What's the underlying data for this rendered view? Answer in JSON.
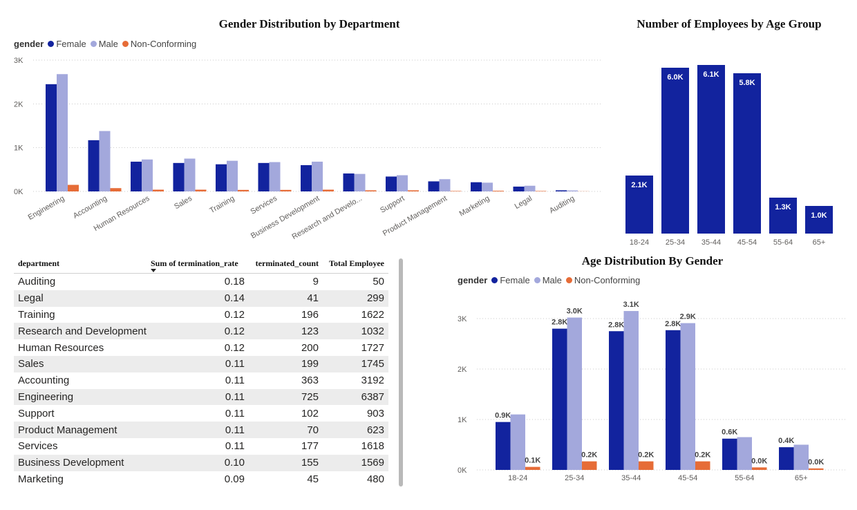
{
  "colors": {
    "female": "#12239E",
    "male": "#A3A8DC",
    "nonconforming": "#E66C37",
    "bar": "#12239E"
  },
  "chart_data": [
    {
      "id": "gender_by_department",
      "type": "bar",
      "title": "Gender Distribution by Department",
      "legend_title": "gender",
      "legend_position": "top-left",
      "grid": true,
      "categories": [
        "Engineering",
        "Accounting",
        "Human Resources",
        "Sales",
        "Training",
        "Services",
        "Business Development",
        "Research and Develo...",
        "Support",
        "Product Management",
        "Marketing",
        "Legal",
        "Auditing"
      ],
      "series": [
        {
          "name": "Female",
          "values": [
            2450,
            1170,
            680,
            650,
            620,
            650,
            600,
            410,
            340,
            230,
            210,
            110,
            25
          ]
        },
        {
          "name": "Male",
          "values": [
            2680,
            1380,
            730,
            750,
            700,
            670,
            680,
            400,
            370,
            280,
            200,
            130,
            22
          ]
        },
        {
          "name": "Non-Conforming",
          "values": [
            150,
            75,
            40,
            40,
            35,
            35,
            40,
            25,
            25,
            10,
            15,
            10,
            3
          ]
        }
      ],
      "yticks": [
        "0K",
        "1K",
        "2K",
        "3K"
      ],
      "ylim": [
        0,
        3000
      ],
      "xlabel": "",
      "ylabel": ""
    },
    {
      "id": "employees_by_age_group",
      "type": "bar",
      "title": "Number of Employees by Age Group",
      "grid": false,
      "categories": [
        "18-24",
        "25-34",
        "35-44",
        "45-54",
        "55-64",
        "65+"
      ],
      "values": [
        2100,
        6000,
        6100,
        5800,
        1300,
        1000
      ],
      "data_labels": [
        "2.1K",
        "6.0K",
        "6.1K",
        "5.8K",
        "1.3K",
        "1.0K"
      ],
      "ylim": [
        0,
        6200
      ],
      "xlabel": "",
      "ylabel": ""
    },
    {
      "id": "age_by_gender",
      "type": "bar",
      "title": "Age Distribution By Gender",
      "legend_title": "gender",
      "legend_position": "top-left",
      "grid": true,
      "categories": [
        "18-24",
        "25-34",
        "35-44",
        "45-54",
        "55-64",
        "65+"
      ],
      "series": [
        {
          "name": "Female",
          "values": [
            950,
            2800,
            2750,
            2770,
            620,
            450
          ],
          "labels": [
            "0.9K",
            "2.8K",
            "2.8K",
            "2.8K",
            "0.6K",
            "0.4K"
          ]
        },
        {
          "name": "Male",
          "values": [
            1100,
            3020,
            3150,
            2910,
            650,
            500
          ],
          "labels": [
            "",
            "3.0K",
            "3.1K",
            "2.9K",
            "",
            ""
          ]
        },
        {
          "name": "Non-Conforming",
          "values": [
            60,
            170,
            170,
            170,
            50,
            30
          ],
          "labels": [
            "0.1K",
            "0.2K",
            "0.2K",
            "0.2K",
            "0.0K",
            "0.0K"
          ]
        }
      ],
      "yticks": [
        "0K",
        "1K",
        "2K",
        "3K"
      ],
      "ylim": [
        0,
        3000
      ],
      "xlabel": "",
      "ylabel": ""
    },
    {
      "id": "termination_table",
      "type": "table",
      "columns": [
        "department",
        "Sum of termination_rate",
        "terminated_count",
        "Total Employee"
      ],
      "rows": [
        [
          "Auditing",
          "0.18",
          "9",
          "50"
        ],
        [
          "Legal",
          "0.14",
          "41",
          "299"
        ],
        [
          "Training",
          "0.12",
          "196",
          "1622"
        ],
        [
          "Research and Development",
          "0.12",
          "123",
          "1032"
        ],
        [
          "Human Resources",
          "0.12",
          "200",
          "1727"
        ],
        [
          "Sales",
          "0.11",
          "199",
          "1745"
        ],
        [
          "Accounting",
          "0.11",
          "363",
          "3192"
        ],
        [
          "Engineering",
          "0.11",
          "725",
          "6387"
        ],
        [
          "Support",
          "0.11",
          "102",
          "903"
        ],
        [
          "Product Management",
          "0.11",
          "70",
          "623"
        ],
        [
          "Services",
          "0.11",
          "177",
          "1618"
        ],
        [
          "Business Development",
          "0.10",
          "155",
          "1569"
        ],
        [
          "Marketing",
          "0.09",
          "45",
          "480"
        ]
      ]
    }
  ]
}
